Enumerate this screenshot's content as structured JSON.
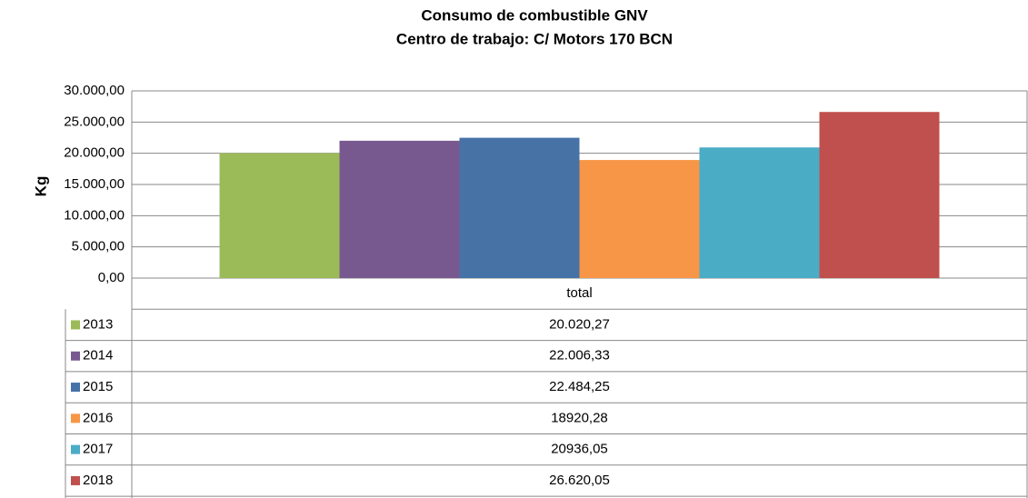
{
  "chart_data": {
    "type": "bar",
    "title": "Consumo de combustible GNV",
    "subtitle": "Centro de trabajo: C/ Motors 170 BCN",
    "y_label": "Kg",
    "categories": [
      "total"
    ],
    "series": [
      {
        "name": "2013",
        "color": "#9bbb59",
        "values": [
          20020.27
        ],
        "value_labels": [
          "20.020,27"
        ]
      },
      {
        "name": "2014",
        "color": "#77598f",
        "values": [
          22006.33
        ],
        "value_labels": [
          "22.006,33"
        ]
      },
      {
        "name": "2015",
        "color": "#4672a6",
        "values": [
          22484.25
        ],
        "value_labels": [
          "22.484,25"
        ]
      },
      {
        "name": "2016",
        "color": "#f79646",
        "values": [
          18920.28
        ],
        "value_labels": [
          "18920,28"
        ]
      },
      {
        "name": "2017",
        "color": "#4bacc6",
        "values": [
          20936.05
        ],
        "value_labels": [
          "20936,05"
        ]
      },
      {
        "name": "2018",
        "color": "#c0504d",
        "values": [
          26620.05
        ],
        "value_labels": [
          "26.620,05"
        ]
      }
    ],
    "ylim": [
      0,
      30000
    ],
    "yticks": [
      {
        "value": 0,
        "label": "0,00"
      },
      {
        "value": 5000,
        "label": "5.000,00"
      },
      {
        "value": 10000,
        "label": "10.000,00"
      },
      {
        "value": 15000,
        "label": "15.000,00"
      },
      {
        "value": 20000,
        "label": "20.000,00"
      },
      {
        "value": 25000,
        "label": "25.000,00"
      },
      {
        "value": 30000,
        "label": "30.000,00"
      }
    ],
    "grid": true
  }
}
